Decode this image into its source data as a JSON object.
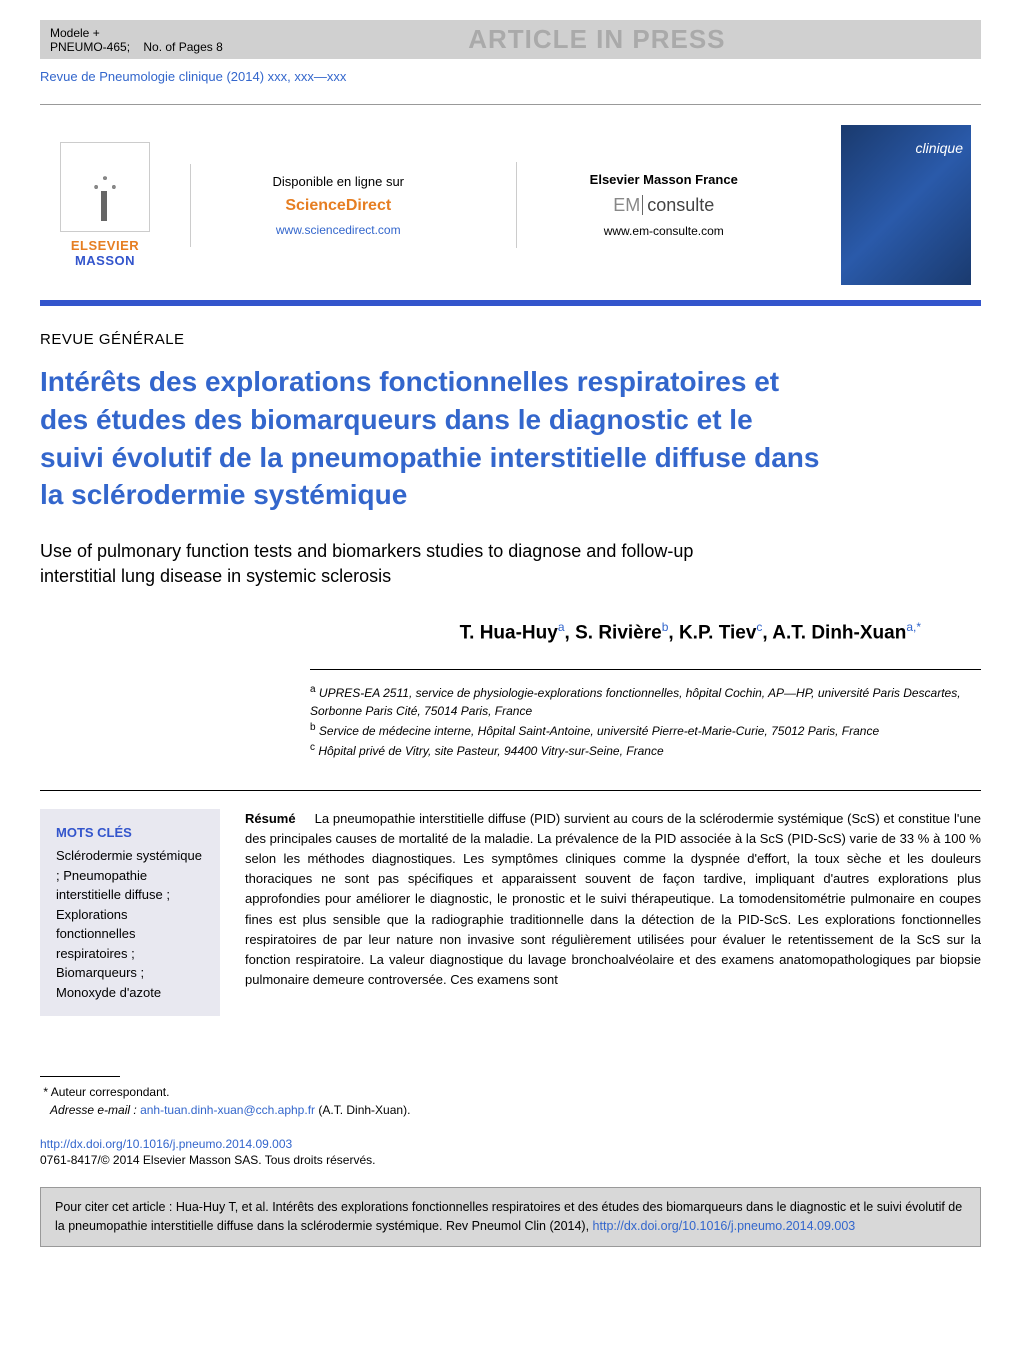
{
  "model_bar": {
    "model": "Modele +",
    "code": "PNEUMO-465;",
    "pages": "No. of Pages 8",
    "banner": "ARTICLE IN PRESS"
  },
  "journal_ref": "Revue de Pneumologie clinique (2014) xxx, xxx—xxx",
  "header": {
    "elsevier": "ELSEVIER",
    "masson": "MASSON",
    "col1_label": "Disponible en ligne sur",
    "col1_brand": "ScienceDirect",
    "col1_url": "www.sciencedirect.com",
    "col2_label": "Elsevier Masson France",
    "col2_em": "EM",
    "col2_consulte": "consulte",
    "col2_url": "www.em-consulte.com",
    "cover_title": "clinique"
  },
  "section": "REVUE GÉNÉRALE",
  "title": "Intérêts des explorations fonctionnelles respiratoires et des études des biomarqueurs dans le diagnostic et le suivi évolutif de la pneumopathie interstitielle diffuse dans la sclérodermie systémique",
  "subtitle": "Use of pulmonary function tests and biomarkers studies to diagnose and follow-up interstitial lung disease in systemic sclerosis",
  "authors": [
    {
      "name": "T. Hua-Huy",
      "sup": "a"
    },
    {
      "name": "S. Rivière",
      "sup": "b"
    },
    {
      "name": "K.P. Tiev",
      "sup": "c"
    },
    {
      "name": "A.T. Dinh-Xuan",
      "sup": "a,*"
    }
  ],
  "affiliations": [
    {
      "sup": "a",
      "text": "UPRES-EA 2511, service de physiologie-explorations fonctionnelles, hôpital Cochin, AP—HP, université Paris Descartes, Sorbonne Paris Cité, 75014 Paris, France"
    },
    {
      "sup": "b",
      "text": "Service de médecine interne, Hôpital Saint-Antoine, université Pierre-et-Marie-Curie, 75012 Paris, France"
    },
    {
      "sup": "c",
      "text": "Hôpital privé de Vitry, site Pasteur, 94400 Vitry-sur-Seine, France"
    }
  ],
  "keywords": {
    "title": "MOTS CLÉS",
    "items": "Sclérodermie systémique ; Pneumopathie interstitielle diffuse ; Explorations fonctionnelles respiratoires ; Biomarqueurs ; Monoxyde d'azote"
  },
  "abstract": {
    "label": "Résumé",
    "text": "La pneumopathie interstitielle diffuse (PID) survient au cours de la sclérodermie systémique (ScS) et constitue l'une des principales causes de mortalité de la maladie. La prévalence de la PID associée à la ScS (PID-ScS) varie de 33 % à 100 % selon les méthodes diagnostiques. Les symptômes cliniques comme la dyspnée d'effort, la toux sèche et les douleurs thoraciques ne sont pas spécifiques et apparaissent souvent de façon tardive, impliquant d'autres explorations plus approfondies pour améliorer le diagnostic, le pronostic et le suivi thérapeutique. La tomodensitométrie pulmonaire en coupes fines est plus sensible que la radiographie traditionnelle dans la détection de la PID-ScS. Les explorations fonctionnelles respiratoires de par leur nature non invasive sont régulièrement utilisées pour évaluer le retentissement de la ScS sur la fonction respiratoire. La valeur diagnostique du lavage bronchoalvéolaire et des examens anatomopathologiques par biopsie pulmonaire demeure controversée. Ces examens sont"
  },
  "footer": {
    "corr_label": "Auteur correspondant.",
    "email_label": "Adresse e-mail :",
    "email": "anh-tuan.dinh-xuan@cch.aphp.fr",
    "email_person": "(A.T. Dinh-Xuan).",
    "doi": "http://dx.doi.org/10.1016/j.pneumo.2014.09.003",
    "copyright": "0761-8417/© 2014 Elsevier Masson SAS. Tous droits réservés."
  },
  "citation": {
    "text": "Pour citer cet article : Hua-Huy T, et al. Intérêts des explorations fonctionnelles respiratoires et des études des biomarqueurs dans le diagnostic et le suivi évolutif de la pneumopathie interstitielle diffuse dans la sclérodermie systémique. Rev Pneumol Clin (2014), ",
    "link": "http://dx.doi.org/10.1016/j.pneumo.2014.09.003"
  },
  "colors": {
    "link_blue": "#3366cc",
    "brand_orange": "#e67e22",
    "bar_blue": "#3355cc",
    "gray_bg": "#d0d0d0",
    "keywords_bg": "#e8e8f0",
    "citation_bg": "#d8d8d8"
  }
}
